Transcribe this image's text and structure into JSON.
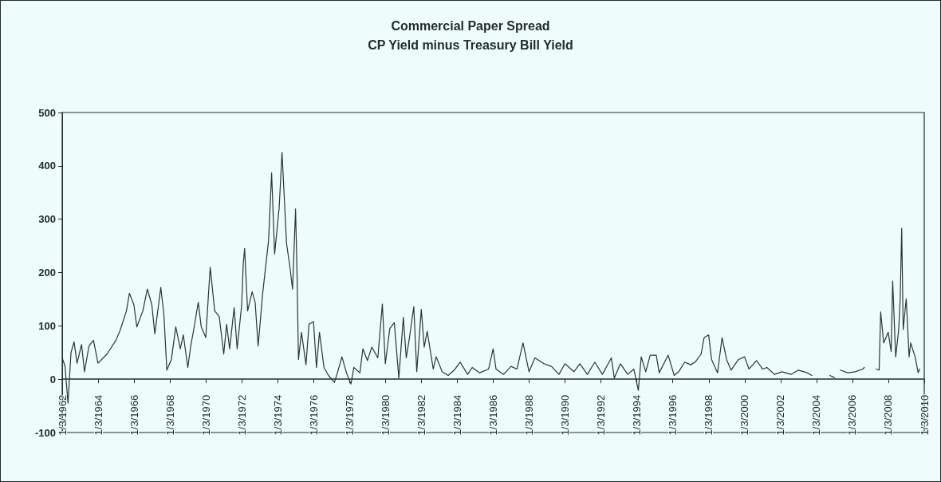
{
  "chart_data": {
    "type": "line",
    "title": "Commercial Paper Spread",
    "subtitle": "CP Yield minus Treasury Bill Yield",
    "x": [
      "1962-01-03",
      "1962-03",
      "1962-05",
      "1962-07",
      "1962-09",
      "1962-11",
      "1963-02",
      "1963-04",
      "1963-07",
      "1963-10",
      "1964-01",
      "1964-07",
      "1965-01",
      "1965-04",
      "1965-08",
      "1965-10",
      "1966-01",
      "1966-03",
      "1966-07",
      "1966-10",
      "1967-01",
      "1967-03",
      "1967-07",
      "1967-09",
      "1967-11",
      "1968-02",
      "1968-05",
      "1968-08",
      "1968-10",
      "1969-01",
      "1969-03",
      "1969-05",
      "1969-08",
      "1969-10",
      "1970-01",
      "1970-04",
      "1970-07",
      "1970-10",
      "1971-01",
      "1971-03",
      "1971-05",
      "1971-08",
      "1971-10",
      "1972-01",
      "1972-02",
      "1972-03",
      "1972-05",
      "1972-08",
      "1972-10",
      "1972-12",
      "1973-03",
      "1973-07",
      "1973-09",
      "1973-11",
      "1974-02",
      "1974-04",
      "1974-07",
      "1974-09",
      "1974-11",
      "1975-01",
      "1975-02",
      "1975-03",
      "1975-05",
      "1975-08",
      "1975-10",
      "1976-01",
      "1976-03",
      "1976-05",
      "1976-08",
      "1976-11",
      "1977-03",
      "1977-05",
      "1977-08",
      "1977-11",
      "1978-02",
      "1978-04",
      "1978-08",
      "1978-10",
      "1979-01",
      "1979-04",
      "1979-08",
      "1979-11",
      "1980-01",
      "1980-04",
      "1980-07",
      "1980-10",
      "1981-01",
      "1981-03",
      "1981-05",
      "1981-08",
      "1981-10",
      "1982-01",
      "1982-03",
      "1982-05",
      "1982-09",
      "1982-11",
      "1983-03",
      "1983-07",
      "1983-11",
      "1984-03",
      "1984-08",
      "1984-11",
      "1985-04",
      "1985-10",
      "1986-01",
      "1986-03",
      "1986-08",
      "1987-01",
      "1987-05",
      "1987-09",
      "1988-01",
      "1988-05",
      "1988-11",
      "1989-04",
      "1989-09",
      "1990-01",
      "1990-07",
      "1990-11",
      "1991-04",
      "1991-09",
      "1992-02",
      "1992-08",
      "1992-10",
      "1993-02",
      "1993-07",
      "1993-11",
      "1994-02",
      "1994-04",
      "1994-07",
      "1994-10",
      "1995-02",
      "1995-04",
      "1995-10",
      "1996-02",
      "1996-05",
      "1996-09",
      "1997-01",
      "1997-04",
      "1997-08",
      "1997-10",
      "1998-01",
      "1998-03",
      "1998-07",
      "1998-10",
      "1999-01",
      "1999-04",
      "1999-09",
      "2000-01",
      "2000-04",
      "2000-09",
      "2001-01",
      "2001-04",
      "2001-09",
      "2002-02",
      "2002-08",
      "2003-01",
      "2003-07",
      "2003-10",
      "2004-04",
      "2004-10",
      "2005-01",
      "2005-03",
      "2005-05",
      "2005-10",
      "2006-03",
      "2006-08",
      "2006-09",
      "2007-02",
      "2007-05",
      "2007-07",
      "2007-08",
      "2007-10",
      "2008-01",
      "2008-03",
      "2008-04",
      "2008-06",
      "2008-08",
      "2008-09",
      "2008-10",
      "2008-11",
      "2009-01",
      "2009-03",
      "2009-04",
      "2009-07",
      "2009-09",
      "2009-10"
    ],
    "series": [
      {
        "color": "#2b3535",
        "values": [
          40,
          25,
          -45,
          50,
          70,
          30,
          65,
          14,
          62,
          73,
          30,
          47,
          73,
          93,
          128,
          161,
          139,
          98,
          128,
          169,
          139,
          85,
          172,
          123,
          17,
          37,
          98,
          57,
          83,
          22,
          62,
          93,
          144,
          98,
          78,
          210,
          128,
          118,
          47,
          103,
          57,
          134,
          57,
          139,
          215,
          245,
          128,
          164,
          144,
          62,
          159,
          260,
          387,
          235,
          321,
          425,
          255,
          215,
          169,
          319,
          194,
          37,
          88,
          27,
          103,
          108,
          22,
          88,
          22,
          7,
          -6,
          12,
          42,
          12,
          -9,
          22,
          12,
          57,
          35,
          60,
          40,
          141,
          29,
          95,
          106,
          2,
          116,
          40,
          75,
          136,
          14,
          131,
          60,
          90,
          19,
          42,
          14,
          7,
          17,
          32,
          9,
          22,
          12,
          19,
          57,
          19,
          9,
          24,
          19,
          68,
          14,
          40,
          29,
          24,
          9,
          29,
          14,
          29,
          9,
          32,
          9,
          40,
          2,
          29,
          9,
          19,
          -21,
          42,
          14,
          45,
          45,
          12,
          45,
          7,
          14,
          32,
          27,
          32,
          47,
          78,
          83,
          37,
          12,
          78,
          37,
          17,
          37,
          42,
          19,
          35,
          19,
          22,
          9,
          14,
          9,
          17,
          12,
          7,
          null,
          7,
          3,
          null,
          17,
          12,
          14,
          19,
          22,
          null,
          19,
          17,
          126,
          68,
          88,
          52,
          184,
          42,
          93,
          149,
          283,
          93,
          151,
          42,
          68,
          42,
          12,
          19
        ]
      }
    ],
    "xlim": [
      "1962-01-03",
      "2010-01-03"
    ],
    "xticks": [
      {
        "value": "1962-01-03",
        "label": "1/3/1962"
      },
      {
        "value": "1964-01-03",
        "label": "1/3/1964"
      },
      {
        "value": "1966-01-03",
        "label": "1/3/1966"
      },
      {
        "value": "1968-01-03",
        "label": "1/3/1968"
      },
      {
        "value": "1970-01-03",
        "label": "1/3/1970"
      },
      {
        "value": "1972-01-03",
        "label": "1/3/1972"
      },
      {
        "value": "1974-01-03",
        "label": "1/3/1974"
      },
      {
        "value": "1976-01-03",
        "label": "1/3/1976"
      },
      {
        "value": "1978-01-03",
        "label": "1/3/1978"
      },
      {
        "value": "1980-01-03",
        "label": "1/3/1980"
      },
      {
        "value": "1982-01-03",
        "label": "1/3/1982"
      },
      {
        "value": "1984-01-03",
        "label": "1/3/1984"
      },
      {
        "value": "1986-01-03",
        "label": "1/3/1986"
      },
      {
        "value": "1988-01-03",
        "label": "1/3/1988"
      },
      {
        "value": "1990-01-03",
        "label": "1/3/1990"
      },
      {
        "value": "1992-01-03",
        "label": "1/3/1992"
      },
      {
        "value": "1994-01-03",
        "label": "1/3/1994"
      },
      {
        "value": "1996-01-03",
        "label": "1/3/1996"
      },
      {
        "value": "1998-01-03",
        "label": "1/3/1998"
      },
      {
        "value": "2000-01-03",
        "label": "1/3/2000"
      },
      {
        "value": "2002-01-03",
        "label": "1/3/2002"
      },
      {
        "value": "2004-01-03",
        "label": "1/3/2004"
      },
      {
        "value": "2006-01-03",
        "label": "1/3/2006"
      },
      {
        "value": "2008-01-03",
        "label": "1/3/2008"
      },
      {
        "value": "2010-01-03",
        "label": "1/3/2010"
      }
    ],
    "ylim": [
      -100,
      500
    ],
    "yticks": [
      -100,
      0,
      100,
      200,
      300,
      400,
      500
    ]
  }
}
